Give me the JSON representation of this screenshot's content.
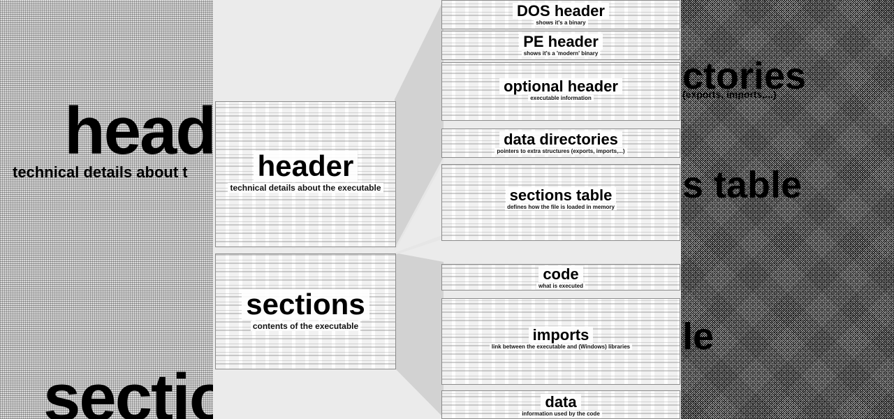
{
  "left_ghost": {
    "title1": "head",
    "subtitle1": "technical details about t",
    "title2": "sectio"
  },
  "right_ghost": {
    "frag1": "ctories",
    "frag1_sub": "(exports, imports,...)",
    "frag2": "s table",
    "frag3": "le"
  },
  "main": {
    "header": {
      "title": "header",
      "subtitle": "technical details about the executable"
    },
    "sections": {
      "title": "sections",
      "subtitle": "contents of the executable"
    }
  },
  "details": [
    {
      "title": "DOS header",
      "subtitle": "shows it's a binary"
    },
    {
      "title": "PE header",
      "subtitle": "shows it's a 'modern' binary"
    },
    {
      "title": "optional header",
      "subtitle": "executable information"
    },
    {
      "title": "data directories",
      "subtitle": "pointers to extra structures (exports, imports,...)"
    },
    {
      "title": "sections table",
      "subtitle": "defines how the file is loaded in memory"
    },
    {
      "title": "code",
      "subtitle": "what is executed"
    },
    {
      "title": "imports",
      "subtitle": "link between the executable and (Windows) libraries"
    },
    {
      "title": "data",
      "subtitle": "information used by the code"
    }
  ],
  "colors": {
    "background": "#ebebeb",
    "box_fill": "#f1f1f1",
    "box_border": "#8a8a8a",
    "wedge": "#c8c8c8",
    "text": "#000000"
  }
}
